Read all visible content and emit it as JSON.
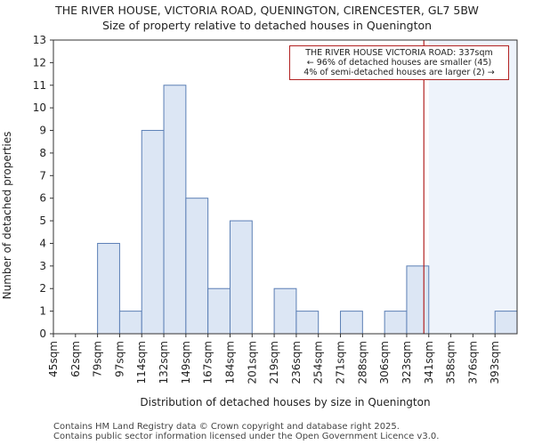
{
  "title_line1": "THE RIVER HOUSE, VICTORIA ROAD, QUENINGTON, CIRENCESTER, GL7 5BW",
  "title_line2": "Size of property relative to detached houses in Quenington",
  "footer_line1": "Contains HM Land Registry data © Crown copyright and database right 2025.",
  "footer_line2": "Contains public sector information licensed under the Open Government Licence v3.0.",
  "annotation": {
    "line1": "THE RIVER HOUSE VICTORIA ROAD: 337sqm",
    "line2": "← 96% of detached houses are smaller (45)",
    "line3": "4% of semi-detached houses are larger (2) →"
  },
  "colors": {
    "bar_fill": "#dce6f4",
    "bar_stroke": "#5b7fb5",
    "marker": "#b22222",
    "shade": "#eef3fb",
    "axis": "#333333"
  },
  "chart_data": {
    "type": "bar",
    "title": "Size of property relative to detached houses in Quenington",
    "xlabel": "Distribution of detached houses by size in Quenington",
    "ylabel": "Number of detached properties",
    "categories": [
      "45sqm",
      "62sqm",
      "79sqm",
      "97sqm",
      "114sqm",
      "132sqm",
      "149sqm",
      "167sqm",
      "184sqm",
      "201sqm",
      "219sqm",
      "236sqm",
      "254sqm",
      "271sqm",
      "288sqm",
      "306sqm",
      "323sqm",
      "341sqm",
      "358sqm",
      "376sqm",
      "393sqm"
    ],
    "values": [
      0,
      0,
      4,
      1,
      9,
      11,
      6,
      2,
      5,
      0,
      2,
      1,
      0,
      1,
      0,
      1,
      3,
      0,
      0,
      0,
      1
    ],
    "yticks": [
      0,
      1,
      2,
      3,
      4,
      5,
      6,
      7,
      8,
      9,
      10,
      11,
      12,
      13
    ],
    "ylim": [
      0,
      13
    ],
    "marker_value": 337,
    "marker_label": "THE RIVER HOUSE VICTORIA ROAD: 337sqm",
    "shaded_from_category": "341sqm",
    "grid": false
  }
}
